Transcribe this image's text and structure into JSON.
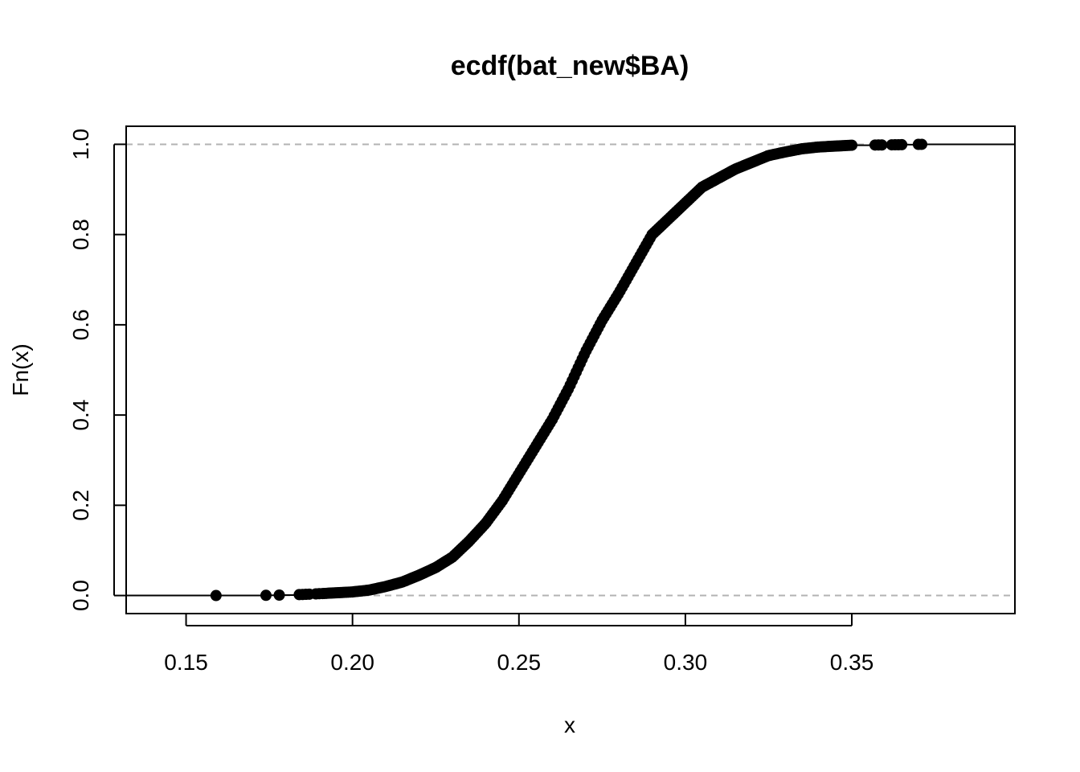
{
  "chart_data": {
    "type": "scatter",
    "title": "ecdf(bat_new$BA)",
    "xlabel": "x",
    "ylabel": "Fn(x)",
    "xlim": [
      0.132,
      0.399
    ],
    "ylim": [
      -0.04,
      1.04
    ],
    "x_ticks": [
      "0.15",
      "0.20",
      "0.25",
      "0.30",
      "0.35"
    ],
    "y_ticks": [
      "0.0",
      "0.2",
      "0.4",
      "0.6",
      "0.8",
      "1.0"
    ],
    "reference_lines": [
      0,
      1
    ],
    "grid": false,
    "legend": "none",
    "marker": "filled-circle",
    "color": "#000000",
    "ecdf_knots": [
      [
        0.159,
        0.0
      ],
      [
        0.174,
        0.0005
      ],
      [
        0.178,
        0.001
      ],
      [
        0.184,
        0.002
      ],
      [
        0.19,
        0.004
      ],
      [
        0.195,
        0.006
      ],
      [
        0.2,
        0.008
      ],
      [
        0.205,
        0.012
      ],
      [
        0.21,
        0.02
      ],
      [
        0.215,
        0.03
      ],
      [
        0.22,
        0.045
      ],
      [
        0.225,
        0.062
      ],
      [
        0.23,
        0.085
      ],
      [
        0.235,
        0.12
      ],
      [
        0.24,
        0.16
      ],
      [
        0.245,
        0.21
      ],
      [
        0.25,
        0.27
      ],
      [
        0.255,
        0.33
      ],
      [
        0.26,
        0.39
      ],
      [
        0.265,
        0.46
      ],
      [
        0.27,
        0.54
      ],
      [
        0.275,
        0.61
      ],
      [
        0.28,
        0.67
      ],
      [
        0.285,
        0.735
      ],
      [
        0.29,
        0.8
      ],
      [
        0.295,
        0.835
      ],
      [
        0.3,
        0.87
      ],
      [
        0.305,
        0.905
      ],
      [
        0.31,
        0.925
      ],
      [
        0.315,
        0.945
      ],
      [
        0.32,
        0.96
      ],
      [
        0.325,
        0.975
      ],
      [
        0.33,
        0.983
      ],
      [
        0.335,
        0.99
      ],
      [
        0.34,
        0.994
      ],
      [
        0.345,
        0.996
      ],
      [
        0.35,
        0.998
      ],
      [
        0.358,
        0.9985
      ],
      [
        0.364,
        0.999
      ],
      [
        0.371,
        1.0
      ]
    ]
  }
}
